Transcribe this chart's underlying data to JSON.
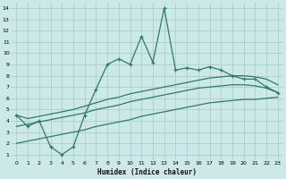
{
  "bg_color": "#cce8e8",
  "grid_color": "#aacfcf",
  "line_color": "#2d7a6b",
  "xlabel": "Humidex (Indice chaleur)",
  "xlim": [
    -0.5,
    23.5
  ],
  "ylim": [
    0.5,
    14.5
  ],
  "xticks": [
    0,
    1,
    2,
    3,
    4,
    5,
    6,
    7,
    8,
    9,
    10,
    11,
    12,
    13,
    14,
    15,
    16,
    17,
    18,
    19,
    20,
    21,
    22,
    23
  ],
  "yticks": [
    1,
    2,
    3,
    4,
    5,
    6,
    7,
    8,
    9,
    10,
    11,
    12,
    13,
    14
  ],
  "line1_x": [
    0,
    1,
    2,
    3,
    4,
    5,
    6,
    7,
    8,
    9,
    10,
    11,
    12,
    13,
    14,
    15,
    16,
    17,
    18,
    19,
    20,
    21,
    22,
    23
  ],
  "line1_y": [
    4.5,
    3.5,
    4.0,
    1.7,
    1.0,
    1.7,
    4.5,
    6.8,
    9.0,
    9.5,
    9.0,
    11.5,
    9.2,
    14.0,
    8.5,
    8.7,
    8.5,
    8.8,
    8.5,
    8.0,
    7.7,
    7.7,
    7.0,
    6.5
  ],
  "curve_upper_x": [
    0,
    1,
    2,
    3,
    4,
    5,
    6,
    7,
    8,
    9,
    10,
    11,
    12,
    13,
    14,
    15,
    16,
    17,
    18,
    19,
    20,
    21,
    22,
    23
  ],
  "curve_upper_y": [
    4.5,
    4.2,
    4.4,
    4.6,
    4.8,
    5.0,
    5.3,
    5.6,
    5.9,
    6.1,
    6.4,
    6.6,
    6.8,
    7.0,
    7.2,
    7.4,
    7.6,
    7.8,
    7.9,
    8.0,
    8.0,
    7.9,
    7.7,
    7.2
  ],
  "curve_mid_x": [
    0,
    1,
    2,
    3,
    4,
    5,
    6,
    7,
    8,
    9,
    10,
    11,
    12,
    13,
    14,
    15,
    16,
    17,
    18,
    19,
    20,
    21,
    22,
    23
  ],
  "curve_mid_y": [
    3.5,
    3.7,
    3.9,
    4.1,
    4.3,
    4.5,
    4.7,
    5.0,
    5.2,
    5.4,
    5.7,
    5.9,
    6.1,
    6.3,
    6.5,
    6.7,
    6.9,
    7.0,
    7.1,
    7.2,
    7.2,
    7.1,
    6.9,
    6.5
  ],
  "curve_lower_x": [
    0,
    1,
    2,
    3,
    4,
    5,
    6,
    7,
    8,
    9,
    10,
    11,
    12,
    13,
    14,
    15,
    16,
    17,
    18,
    19,
    20,
    21,
    22,
    23
  ],
  "curve_lower_y": [
    2.0,
    2.2,
    2.4,
    2.6,
    2.8,
    3.0,
    3.2,
    3.5,
    3.7,
    3.9,
    4.1,
    4.4,
    4.6,
    4.8,
    5.0,
    5.2,
    5.4,
    5.6,
    5.7,
    5.8,
    5.9,
    5.9,
    6.0,
    6.1
  ]
}
